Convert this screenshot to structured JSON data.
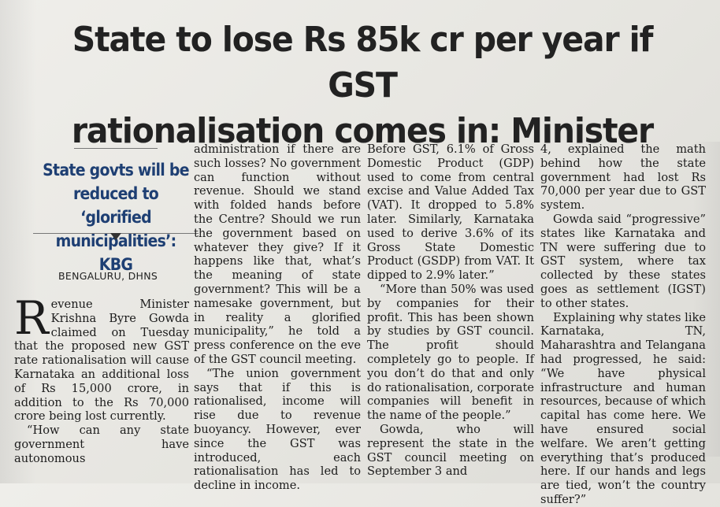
{
  "article": {
    "headline_line1": "State to lose Rs 85k cr per year if GST",
    "headline_line2": "rationalisation comes in: Minister",
    "subhead_line1": "State govts will be",
    "subhead_line2": "reduced to ‘glorified",
    "subhead_line3": "municipalities’: KBG",
    "dateline": "BENGALURU, DHNS",
    "dropcap": "R",
    "col1_p1": "evenue Minister Krishna Byre Gowda claimed on Tuesday that the proposed new GST rate rationalisation will cause Karnataka an additional loss of Rs 15,000 crore, in addition to the Rs 70,000 crore being lost currently.",
    "col1_p2": "“How can any state government have autonomous",
    "col2_p1": "administration if there are such losses? No government can function without revenue. Should we stand with folded hands before the Centre? Should we run the government based on whatever they give? If it happens like that, what’s the meaning of state government? This will be a namesake government, but in reality a glorified municipality,” he told a press conference on the eve of the GST council meeting.",
    "col2_p2": "“The union government says that if this is rationalised, income will rise due to revenue buoyancy. However, ever since the GST was introduced, each rationalisation has led to decline in income.",
    "col3_p1": "Before GST, 6.1% of Gross Domestic Product (GDP) used to come from central excise and Value Added Tax (VAT). It dropped to 5.8% later. Similarly, Karnataka used to derive 3.6% of its Gross State Domestic Product (GSDP) from VAT. It dipped to 2.9% later.”",
    "col3_p2": "“More than 50% was used by companies for their profit. This has been shown by studies by GST council. The profit should completely go to people. If you don’t do that and only do rationalisation, corporate companies will benefit in the name of the people.”",
    "col3_p3": "Gowda, who will represent the state in the GST council meeting on September 3 and",
    "col4_p1": "4, explained the math behind how the state government had lost Rs 70,000 per year due to GST system.",
    "col4_p2": "Gowda said “progressive” states like Karnataka and TN were suffering due to GST system, where tax collected by these states goes as settlement (IGST) to other states.",
    "col4_p3": "Explaining why states like Karnataka, TN, Maharashtra and Telangana had progressed, he said: “We have physical infrastructure and human resources, because of which capital has come here. We have ensured social welfare. We aren’t getting everything that’s produced here. If our hands and legs are tied, won’t the country suffer?”"
  },
  "colors": {
    "paper": "#e9e8e4",
    "ink": "#1c1c1c",
    "subhead_blue": "#1e3f73"
  },
  "icons": {
    "divider_marker": "down-triangle"
  }
}
